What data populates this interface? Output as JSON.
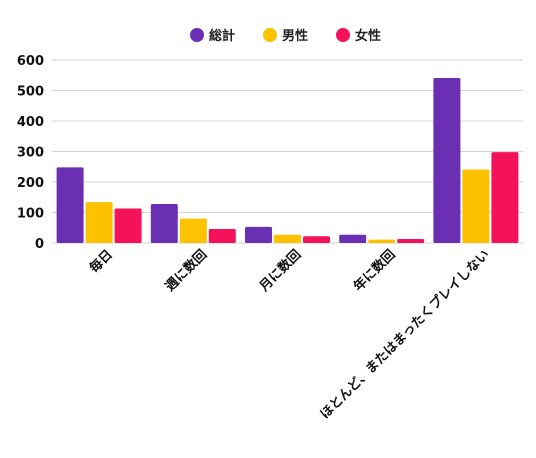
{
  "chart_data": {
    "type": "bar",
    "title": "",
    "xlabel": "",
    "ylabel": "",
    "ylim": [
      0,
      600
    ],
    "yticks": [
      0,
      100,
      200,
      300,
      400,
      500,
      600
    ],
    "grid": true,
    "legend_position": "top-center",
    "categories": [
      "毎日",
      "週に数回",
      "月に数回",
      "年に数回",
      "ほとんど、またはまったくプレイしない"
    ],
    "series": [
      {
        "name": "総計",
        "color": "#6a2fb2",
        "values": [
          248,
          128,
          53,
          27,
          541
        ]
      },
      {
        "name": "男性",
        "color": "#fcc200",
        "values": [
          134,
          80,
          27,
          11,
          241
        ]
      },
      {
        "name": "女性",
        "color": "#f4135a",
        "values": [
          113,
          46,
          22,
          13,
          298
        ]
      }
    ]
  }
}
